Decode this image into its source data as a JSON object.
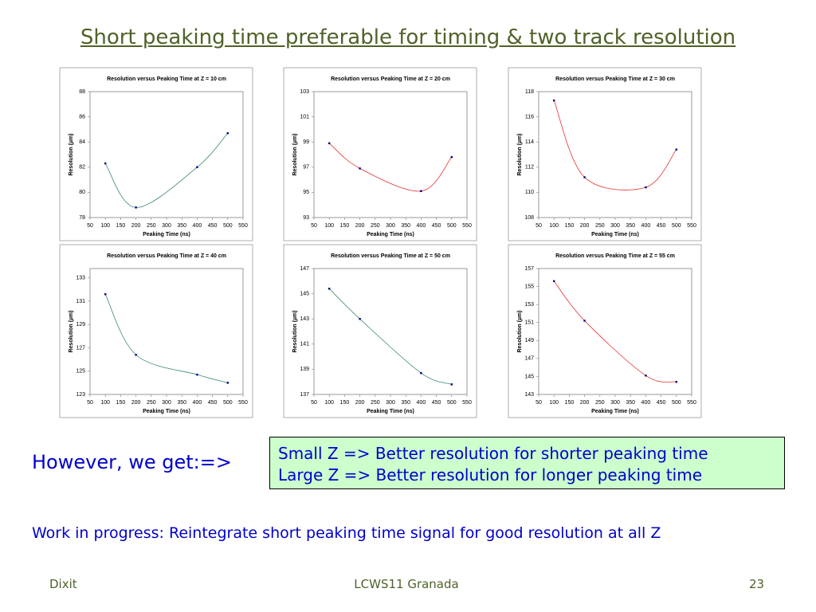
{
  "slide": {
    "title": "Short peaking time preferable for timing & two track resolution",
    "lead": "However, we get:=>",
    "box": [
      "Small Z => Better resolution for shorter peaking time",
      "Large Z => Better resolution for longer peaking time"
    ],
    "note": "Work in progress: Reintegrate short peaking time signal for good resolution at all Z",
    "footer_left": "Dixit",
    "footer_center": "LCWS11 Granada",
    "footer_right": "23"
  },
  "chart_data": [
    {
      "type": "line",
      "title": "Resolution versus Peaking Time at Z = 10 cm",
      "xlabel": "Peaking Time (ns)",
      "ylabel": "Resolution (µm)",
      "x": [
        100,
        200,
        400,
        500
      ],
      "values": [
        82.3,
        78.8,
        82.0,
        84.7
      ],
      "color": "#3a8a6e",
      "xlim": [
        50,
        550
      ],
      "xticks": [
        50,
        100,
        150,
        200,
        250,
        300,
        350,
        400,
        450,
        500,
        550
      ],
      "ylim": [
        78,
        88
      ],
      "yticks": [
        78,
        80,
        82,
        84,
        86,
        88
      ]
    },
    {
      "type": "line",
      "title": "Resolution versus Peaking Time at Z = 20 cm",
      "xlabel": "Peaking Time (ns)",
      "ylabel": "Resolution (µm)",
      "x": [
        100,
        200,
        400,
        500
      ],
      "values": [
        98.9,
        96.9,
        95.1,
        97.8
      ],
      "color": "#e83030",
      "xlim": [
        50,
        550
      ],
      "xticks": [
        50,
        100,
        150,
        200,
        250,
        300,
        350,
        400,
        450,
        500,
        550
      ],
      "ylim": [
        93,
        103
      ],
      "yticks": [
        93,
        95,
        97,
        99,
        101,
        103
      ]
    },
    {
      "type": "line",
      "title": "Resolution versus Peaking Time at Z = 30 cm",
      "xlabel": "Peaking Time (ns)",
      "ylabel": "Resolution (µm)",
      "x": [
        100,
        200,
        400,
        500
      ],
      "values": [
        117.3,
        111.2,
        110.4,
        113.4
      ],
      "color": "#e83030",
      "xlim": [
        50,
        550
      ],
      "xticks": [
        50,
        100,
        150,
        200,
        250,
        300,
        350,
        400,
        450,
        500,
        550
      ],
      "ylim": [
        108,
        118
      ],
      "yticks": [
        108,
        110,
        112,
        114,
        116,
        118
      ]
    },
    {
      "type": "line",
      "title": "Resolution versus Peaking Time at Z = 40 cm",
      "xlabel": "Peaking Time (ns)",
      "ylabel": "Resolution (µm)",
      "x": [
        100,
        200,
        400,
        500
      ],
      "values": [
        131.6,
        126.4,
        124.7,
        124.0
      ],
      "color": "#3a8a6e",
      "xlim": [
        50,
        550
      ],
      "xticks": [
        50,
        100,
        150,
        200,
        250,
        300,
        350,
        400,
        450,
        500,
        550
      ],
      "ylim": [
        123,
        133.8
      ],
      "yticks": [
        123,
        125,
        127,
        129,
        131,
        133
      ]
    },
    {
      "type": "line",
      "title": "Resolution versus Peaking Time at Z = 50 cm",
      "xlabel": "Peaking Time (ns)",
      "ylabel": "Resolution (µm)",
      "x": [
        100,
        200,
        400,
        500
      ],
      "values": [
        145.4,
        143.0,
        138.7,
        137.8
      ],
      "color": "#3a8a6e",
      "xlim": [
        50,
        550
      ],
      "xticks": [
        50,
        100,
        150,
        200,
        250,
        300,
        350,
        400,
        450,
        500,
        550
      ],
      "ylim": [
        137,
        147
      ],
      "yticks": [
        137,
        139,
        141,
        143,
        145,
        147
      ]
    },
    {
      "type": "line",
      "title": "Resolution versus Peaking Time at Z = 55 cm",
      "xlabel": "Peaking Time (ns)",
      "ylabel": "Resolution (µm)",
      "x": [
        100,
        200,
        400,
        500
      ],
      "values": [
        155.6,
        151.2,
        145.1,
        144.4
      ],
      "color": "#e83030",
      "xlim": [
        50,
        550
      ],
      "xticks": [
        50,
        100,
        150,
        200,
        250,
        300,
        350,
        400,
        450,
        500,
        550
      ],
      "ylim": [
        143,
        157
      ],
      "yticks": [
        143,
        145,
        147,
        149,
        151,
        153,
        155,
        157
      ]
    }
  ]
}
